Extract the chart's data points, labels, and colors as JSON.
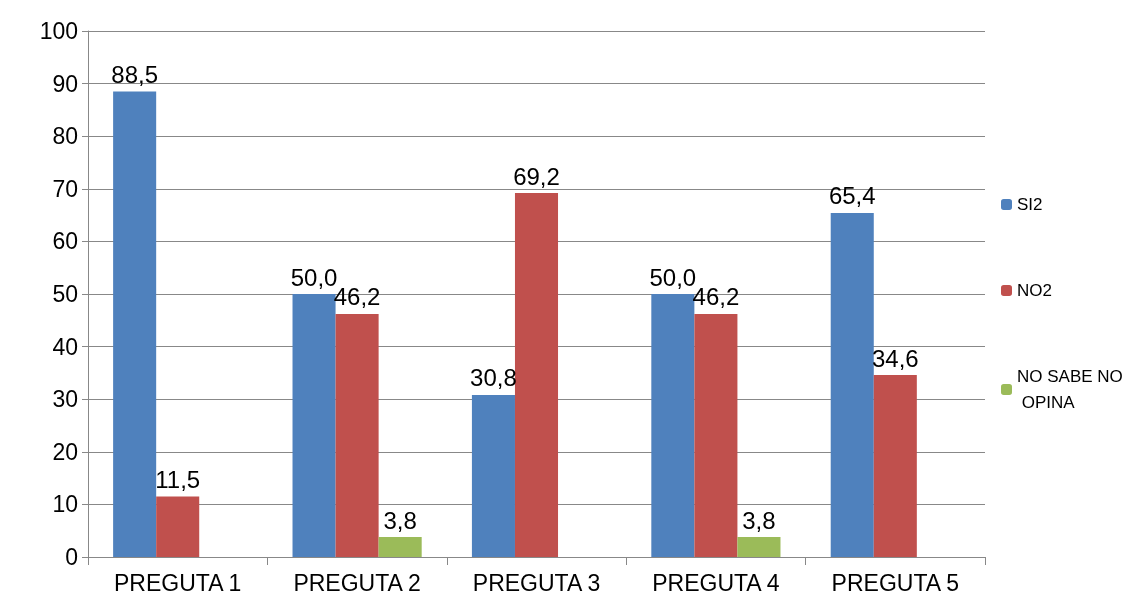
{
  "chart_data": {
    "type": "bar",
    "categories": [
      "PREGUTA 1",
      "PREGUTA 2",
      "PREGUTA 3",
      "PREGUTA 4",
      "PREGUTA 5"
    ],
    "series": [
      {
        "name": "SI2",
        "color": "#4f81bd",
        "values": [
          88.5,
          50.0,
          30.8,
          50.0,
          65.4
        ],
        "value_labels": [
          "88,5",
          "50,0",
          "30,8",
          "50,0",
          "65,4"
        ]
      },
      {
        "name": "NO2",
        "color": "#c0504d",
        "values": [
          11.5,
          46.2,
          69.2,
          46.2,
          34.6
        ],
        "value_labels": [
          "11,5",
          "46,2",
          "69,2",
          "46,2",
          "34,6"
        ]
      },
      {
        "name": "NO SABE NO OPINA",
        "color": "#9bbb59",
        "values": [
          null,
          3.8,
          null,
          3.8,
          null
        ],
        "value_labels": [
          null,
          "3,8",
          null,
          "3,8",
          null
        ]
      }
    ],
    "ylim": [
      0,
      100
    ],
    "yticks": [
      0,
      10,
      20,
      30,
      40,
      50,
      60,
      70,
      80,
      90,
      100
    ],
    "grid": "y",
    "legend": "right"
  }
}
